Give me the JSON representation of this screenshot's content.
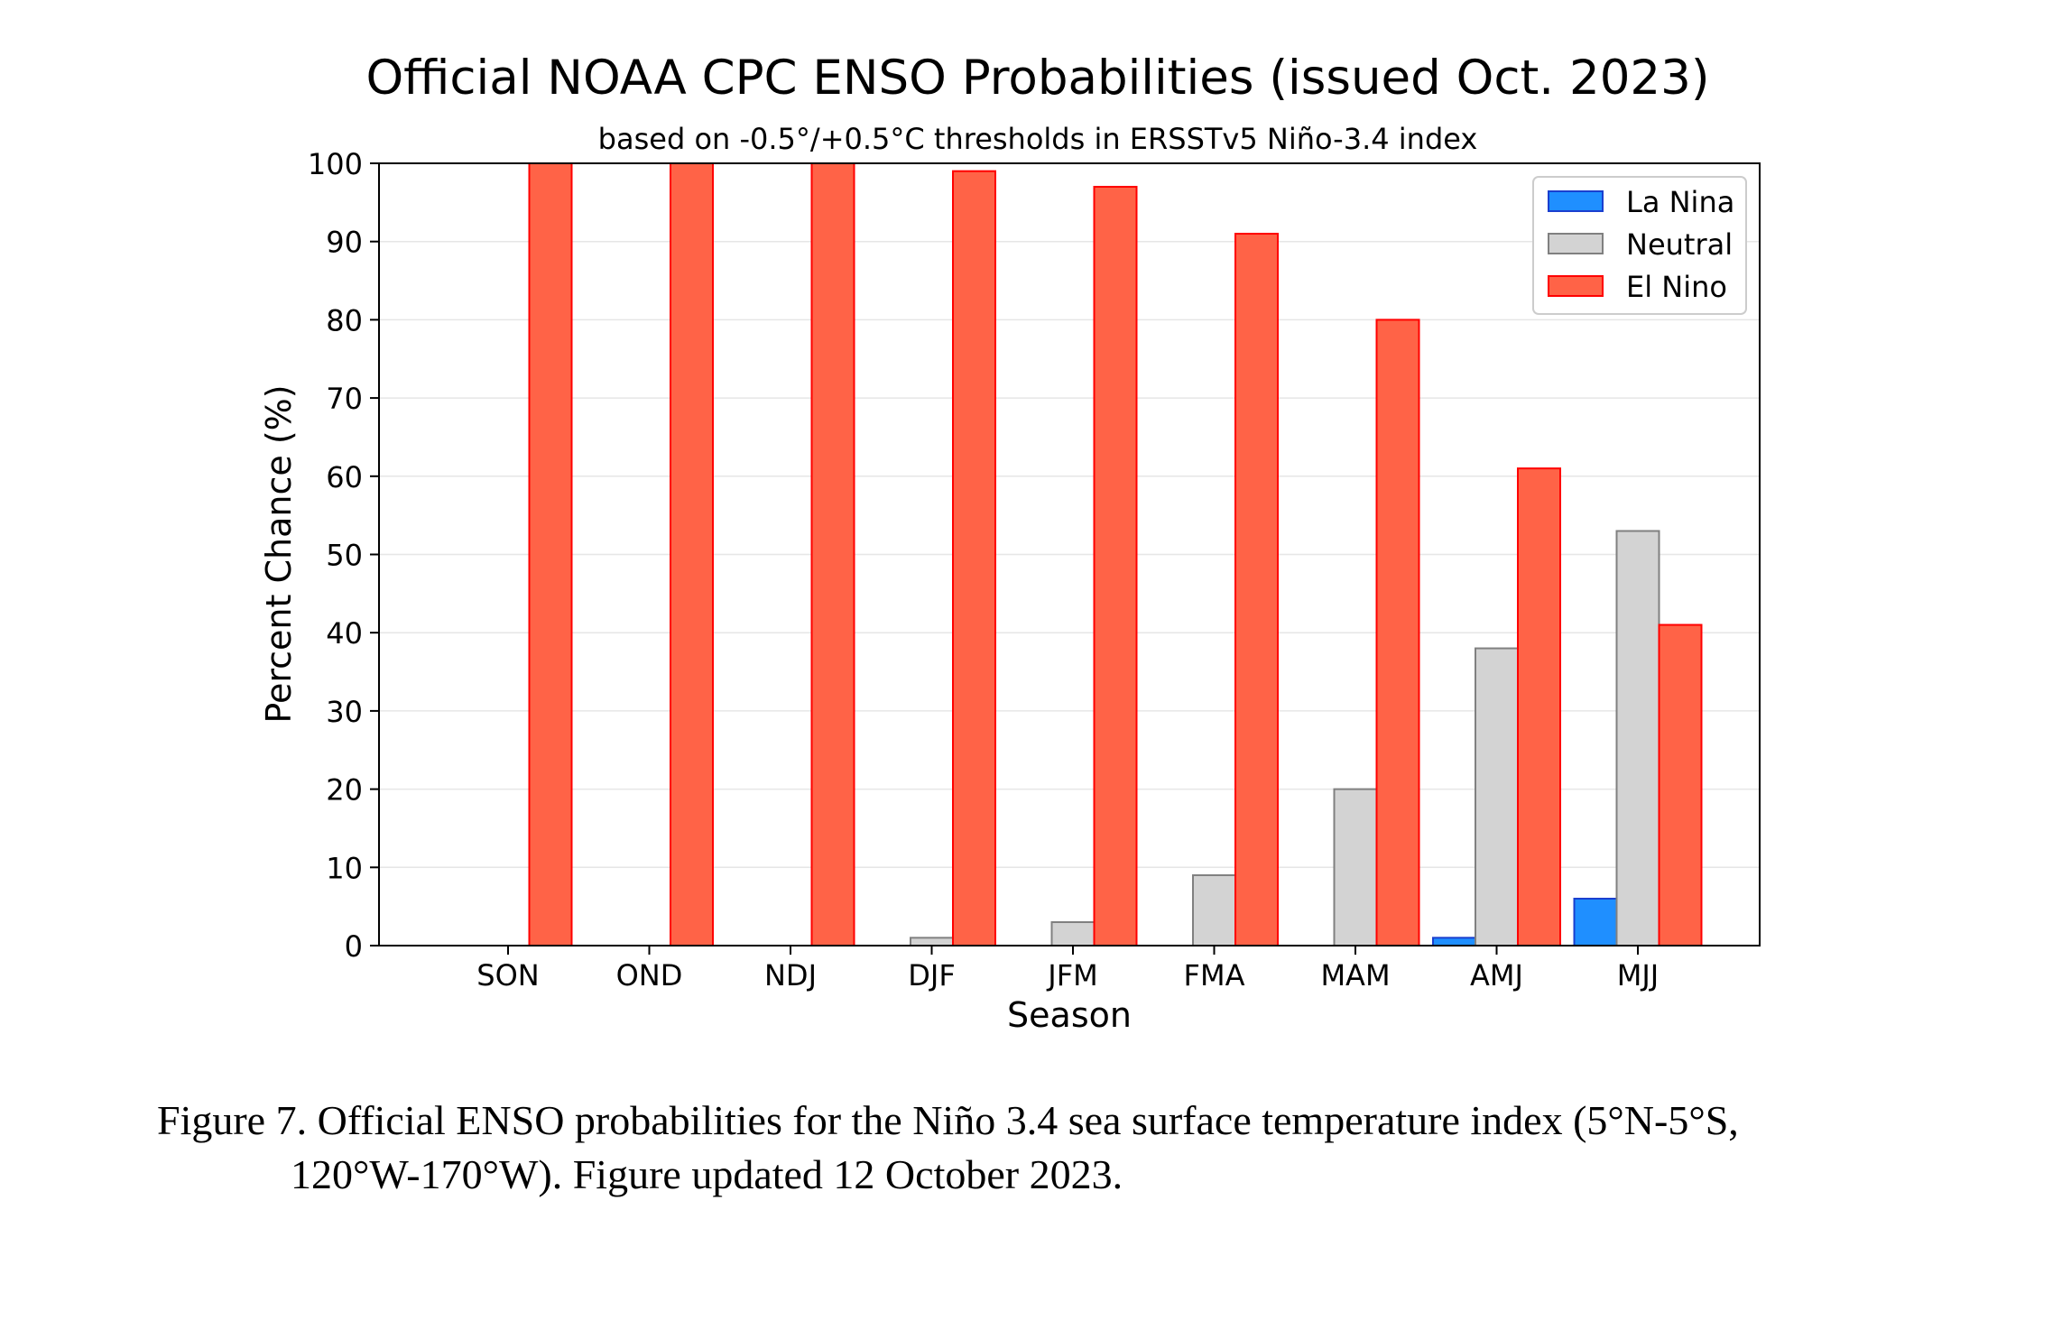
{
  "chart_data": {
    "type": "bar",
    "title": "Official NOAA CPC ENSO Probabilities (issued Oct. 2023)",
    "subtitle": "based on -0.5°/+0.5°C thresholds in ERSSTv5 Niño-3.4 index",
    "xlabel": "Season",
    "ylabel": "Percent Chance (%)",
    "ylim": [
      0,
      100
    ],
    "yticks": [
      0,
      10,
      20,
      30,
      40,
      50,
      60,
      70,
      80,
      90,
      100
    ],
    "grid": true,
    "legend_position": "top-right",
    "categories": [
      "SON",
      "OND",
      "NDJ",
      "DJF",
      "JFM",
      "FMA",
      "MAM",
      "AMJ",
      "MJJ"
    ],
    "series": [
      {
        "name": "La Nina",
        "color": "#1f8fff",
        "edge": "#1a3fcf",
        "values": [
          0,
          0,
          0,
          0,
          0,
          0,
          0,
          1,
          6
        ]
      },
      {
        "name": "Neutral",
        "color": "#d3d3d3",
        "edge": "#808080",
        "values": [
          0,
          0,
          0,
          1,
          3,
          9,
          20,
          38,
          53
        ]
      },
      {
        "name": "El Nino",
        "color": "#ff6347",
        "edge": "#ff0000",
        "values": [
          100,
          100,
          100,
          99,
          97,
          91,
          80,
          61,
          41
        ]
      }
    ]
  },
  "caption": {
    "line1": "Figure 7. Official ENSO probabilities for the Niño 3.4 sea surface temperature index (5°N-5°S,",
    "line2": "120°W-170°W). Figure updated 12 October 2023."
  }
}
